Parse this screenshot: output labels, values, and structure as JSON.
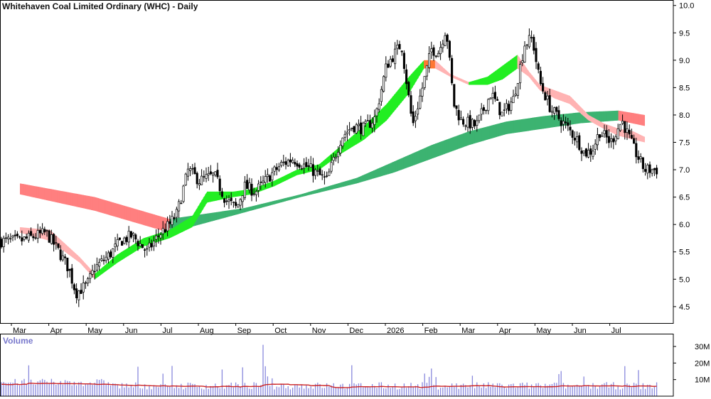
{
  "colors": {
    "long_band_up": "#3cb371",
    "long_band_down": "#ff7f7f",
    "short_band_up": "#22ee22",
    "short_band_down": "#ffb3b3",
    "transition": "#ff7733",
    "candle": "#000000",
    "volume_bar": "#8888dd",
    "volume_ma": "#cc2222",
    "volume_label": "#7777cc"
  },
  "chart_data": [
    {
      "type": "line",
      "title": "Whitehaven Coal Limited Ordinary (WHC) - Daily",
      "x_ticks": [
        "Mar",
        "Apr",
        "May",
        "Jun",
        "Jul",
        "Aug",
        "Sep",
        "Oct",
        "Nov",
        "Dec",
        "2026",
        "Feb",
        "Mar",
        "Apr",
        "May",
        "Jun",
        "Jul"
      ],
      "y_ticks": [
        "10.0",
        "9.5",
        "9.0",
        "8.5",
        "8.0",
        "7.5",
        "7.0",
        "6.5",
        "6.0",
        "5.5",
        "5.0",
        "4.5"
      ],
      "ylim": [
        4.2,
        10.1
      ],
      "axis_position": "right",
      "grid": false,
      "price_anchors": {
        "x": [
          0,
          0.7,
          1.0,
          1.3,
          1.5,
          1.8,
          2.0,
          2.4,
          2.7,
          3.0,
          3.4,
          3.7,
          4.0,
          4.2,
          4.5,
          4.8,
          5.2,
          5.5,
          5.8,
          6.0,
          6.3,
          6.7,
          7.0,
          7.3,
          7.8,
          8.2,
          8.6,
          8.9,
          9.2,
          9.5,
          9.8,
          10.2,
          10.5,
          10.8,
          11.0,
          11.2,
          11.4,
          11.6,
          11.8,
          12.2,
          12.6,
          12.9,
          13.2,
          13.5,
          13.7,
          13.9,
          14.2,
          14.6,
          14.9,
          15.1,
          15.3,
          15.5,
          15.8,
          16.1,
          16.4,
          16.7
        ],
        "y": [
          5.7,
          5.85,
          5.55,
          5.2,
          4.75,
          4.9,
          5.2,
          5.45,
          5.7,
          5.8,
          5.5,
          5.8,
          6.0,
          6.2,
          7.0,
          6.8,
          6.9,
          6.45,
          6.3,
          6.7,
          6.6,
          6.9,
          7.1,
          7.2,
          7.0,
          6.8,
          7.6,
          7.8,
          7.75,
          7.95,
          8.9,
          9.3,
          7.8,
          8.6,
          9.2,
          9.15,
          9.6,
          8.2,
          7.9,
          7.8,
          8.4,
          8.0,
          8.3,
          9.3,
          9.4,
          8.6,
          8.1,
          7.8,
          7.55,
          7.3,
          7.35,
          7.7,
          7.5,
          7.9,
          7.4,
          7.0
        ]
      },
      "ma_ribbons": [
        {
          "kind": "long-term",
          "x": [
            0,
            2,
            4,
            6,
            7.5,
            9,
            10,
            11,
            12,
            13,
            14,
            15,
            16,
            16.7
          ],
          "upper": [
            6.75,
            6.5,
            6.1,
            6.3,
            6.55,
            6.85,
            7.15,
            7.45,
            7.7,
            7.88,
            7.98,
            8.05,
            8.08,
            8.0
          ],
          "lower": [
            6.55,
            6.25,
            5.85,
            6.22,
            6.5,
            6.75,
            6.95,
            7.2,
            7.45,
            7.65,
            7.75,
            7.85,
            7.9,
            7.8
          ]
        },
        {
          "kind": "short-term",
          "x": [
            0,
            0.8,
            1.6,
            2.0,
            2.6,
            3.3,
            4.0,
            4.6,
            5.0,
            5.7,
            6.2,
            6.8,
            7.4,
            8.0,
            8.6,
            9.2,
            9.8,
            10.4,
            10.8,
            11.1,
            11.5,
            12.0,
            12.5,
            12.9,
            13.3,
            13.6,
            13.9,
            14.3,
            14.7,
            15.2,
            15.6,
            16.0,
            16.4,
            16.7
          ],
          "upper": [
            5.95,
            5.9,
            5.4,
            5.1,
            5.45,
            5.75,
            5.9,
            6.15,
            6.6,
            6.6,
            6.65,
            6.8,
            7.0,
            7.1,
            7.45,
            7.8,
            8.2,
            8.7,
            9.0,
            9.0,
            8.75,
            8.6,
            8.7,
            8.9,
            9.1,
            8.8,
            8.55,
            8.45,
            8.35,
            8.0,
            7.85,
            7.75,
            7.7,
            7.6
          ],
          "lower": [
            5.85,
            5.7,
            5.3,
            5.0,
            5.3,
            5.6,
            5.75,
            5.95,
            6.4,
            6.5,
            6.55,
            6.7,
            6.9,
            7.0,
            7.3,
            7.55,
            7.9,
            8.4,
            8.85,
            8.85,
            8.7,
            8.55,
            8.55,
            8.65,
            8.85,
            8.7,
            8.45,
            8.3,
            8.2,
            7.9,
            7.75,
            7.62,
            7.55,
            7.5
          ]
        }
      ]
    },
    {
      "type": "bar",
      "title": "Volume",
      "y_ticks": [
        "30M",
        "20M",
        "10M"
      ],
      "ylim": [
        0,
        36
      ]
    }
  ]
}
